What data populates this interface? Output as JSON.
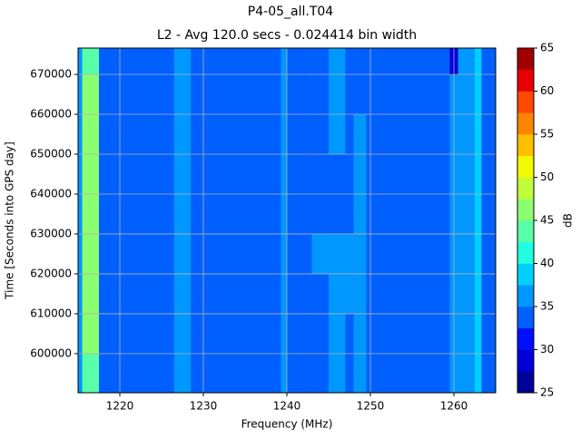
{
  "chart_data": {
    "type": "heatmap",
    "title": "P4-05_all.T04",
    "subtitle": "L2 - Avg 120.0 secs - 0.024414 bin width",
    "xlabel": "Frequency (MHz)",
    "ylabel": "Time [Seconds into GPS day]",
    "xbins": [
      1215,
      1215.5,
      1217.5,
      1226.5,
      1228.5,
      1239.3,
      1240,
      1243,
      1245,
      1247,
      1248,
      1249.5,
      1259.5,
      1260.5,
      1262.5,
      1263.3,
      1265
    ],
    "ybins": [
      590200,
      600000,
      610000,
      620000,
      630000,
      640000,
      650000,
      660000,
      670000,
      676600
    ],
    "z": [
      [
        36,
        44,
        34,
        36,
        34,
        36,
        34,
        34,
        36,
        34,
        36,
        34,
        36,
        36,
        38,
        34
      ],
      [
        36,
        45,
        34,
        36,
        34,
        36,
        34,
        34,
        36,
        34,
        36,
        34,
        36,
        36,
        38,
        34
      ],
      [
        36,
        45,
        34,
        36,
        34,
        36,
        34,
        34,
        36,
        36,
        37,
        34,
        36,
        36,
        38,
        34
      ],
      [
        36,
        46,
        34,
        36,
        34,
        36,
        34,
        36,
        36,
        36,
        37,
        34,
        36,
        36,
        38,
        34
      ],
      [
        36,
        46,
        34,
        36,
        34,
        36,
        34,
        34,
        34,
        34,
        36,
        34,
        36,
        36,
        38,
        34
      ],
      [
        36,
        46,
        34,
        36,
        34,
        36,
        34,
        34,
        34,
        34,
        36,
        34,
        36,
        36,
        38,
        34
      ],
      [
        36,
        46,
        34,
        36,
        34,
        36,
        34,
        34,
        36,
        34,
        36,
        34,
        36,
        36,
        39,
        34
      ],
      [
        36,
        45,
        34,
        36,
        34,
        36,
        34,
        34,
        36,
        34,
        34,
        34,
        36,
        36,
        39,
        34
      ],
      [
        36,
        44,
        34,
        36,
        34,
        36,
        34,
        34,
        36,
        34,
        34,
        34,
        28,
        36,
        38,
        34
      ]
    ],
    "xlim": [
      1215,
      1265
    ],
    "ylim": [
      590200,
      676600
    ],
    "xticks": [
      1220,
      1230,
      1240,
      1250,
      1260
    ],
    "yticks": [
      600000,
      610000,
      620000,
      630000,
      640000,
      650000,
      660000,
      670000
    ],
    "grid": true,
    "colorbar": {
      "label": "dB",
      "levels": [
        25,
        27.5,
        30,
        32.5,
        35,
        37.5,
        40,
        42.5,
        45,
        47.5,
        50,
        52.5,
        55,
        57.5,
        60,
        62.5,
        65
      ],
      "colors": [
        "#00009a",
        "#0000d8",
        "#0010ff",
        "#0060ff",
        "#0098ff",
        "#00d0ff",
        "#20ffe0",
        "#58ffa8",
        "#8cff70",
        "#c0ff38",
        "#f4f800",
        "#ffc000",
        "#ff8400",
        "#ff4800",
        "#e80000",
        "#a00000"
      ],
      "ticks": [
        25,
        30,
        35,
        40,
        45,
        50,
        55,
        60,
        65
      ]
    }
  }
}
